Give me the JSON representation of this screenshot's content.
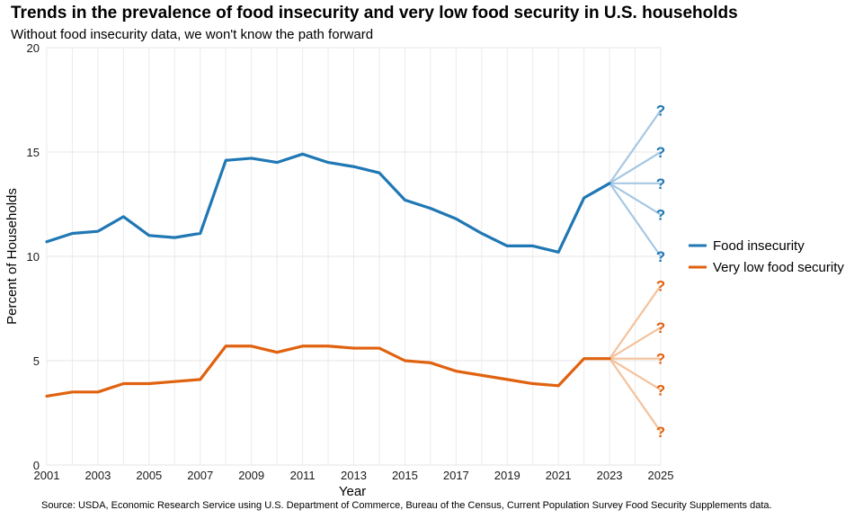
{
  "title": "Trends in the prevalence of food insecurity and very low food security in U.S. households",
  "subtitle": "Without food insecurity data, we won't know the path forward",
  "source": "Source: USDA, Economic Research Service using U.S. Department of Commerce,  Bureau of the Census, Current Population Survey Food Security Supplements data.",
  "chart_data": {
    "type": "line",
    "xlabel": "Year",
    "ylabel": "Percent of Households",
    "xlim": [
      2001,
      2025
    ],
    "ylim": [
      0,
      20
    ],
    "x_ticks": [
      2001,
      2003,
      2005,
      2007,
      2009,
      2011,
      2013,
      2015,
      2017,
      2019,
      2021,
      2023,
      2025
    ],
    "x_tick_labels": [
      "2001",
      "2003",
      "2005",
      "2007",
      "2009",
      "2011",
      "2013",
      "2015",
      "2017",
      "2019",
      "2021",
      "2023",
      "2025"
    ],
    "y_ticks": [
      0,
      5,
      10,
      15,
      20
    ],
    "y_tick_labels": [
      "0",
      "5",
      "10",
      "15",
      "20"
    ],
    "grid": true,
    "legend_position": "right",
    "x": [
      2001,
      2002,
      2003,
      2004,
      2005,
      2006,
      2007,
      2008,
      2009,
      2010,
      2011,
      2012,
      2013,
      2014,
      2015,
      2016,
      2017,
      2018,
      2019,
      2020,
      2021,
      2022,
      2023
    ],
    "series": [
      {
        "name": "Food insecurity",
        "color": "#1f77b4",
        "projection_color": "#a6c8e4",
        "values": [
          10.7,
          11.1,
          11.2,
          11.9,
          11.0,
          10.9,
          11.1,
          14.6,
          14.7,
          14.5,
          14.9,
          14.5,
          14.3,
          14.0,
          12.7,
          12.3,
          11.8,
          11.1,
          10.5,
          10.5,
          10.2,
          12.8,
          13.5
        ],
        "projection_x": 2025,
        "projection_values": [
          17.0,
          15.0,
          13.5,
          12.0,
          10.0
        ],
        "projection_marker": "?"
      },
      {
        "name": "Very low food security",
        "color": "#e0620f",
        "projection_color": "#f4c29c",
        "values": [
          3.3,
          3.5,
          3.5,
          3.9,
          3.9,
          4.0,
          4.1,
          5.7,
          5.7,
          5.4,
          5.7,
          5.7,
          5.6,
          5.6,
          5.0,
          4.9,
          4.5,
          4.3,
          4.1,
          3.9,
          3.8,
          5.1,
          5.1
        ],
        "projection_x": 2025,
        "projection_values": [
          8.6,
          6.6,
          5.1,
          3.6,
          1.6
        ],
        "projection_marker": "?"
      }
    ]
  }
}
